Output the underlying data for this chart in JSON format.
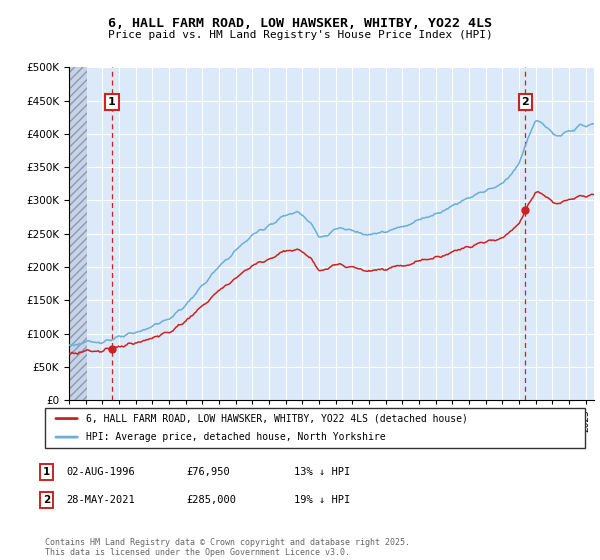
{
  "title": "6, HALL FARM ROAD, LOW HAWSKER, WHITBY, YO22 4LS",
  "subtitle": "Price paid vs. HM Land Registry's House Price Index (HPI)",
  "ylim": [
    0,
    500000
  ],
  "yticks": [
    0,
    50000,
    100000,
    150000,
    200000,
    250000,
    300000,
    350000,
    400000,
    450000,
    500000
  ],
  "xlim_start": 1994.0,
  "xlim_end": 2025.5,
  "hpi_color": "#6baed6",
  "price_color": "#cc2222",
  "sale1_x": 1996.58,
  "sale1_y": 76950,
  "sale2_x": 2021.38,
  "sale2_y": 285000,
  "legend_line1": "6, HALL FARM ROAD, LOW HAWSKER, WHITBY, YO22 4LS (detached house)",
  "legend_line2": "HPI: Average price, detached house, North Yorkshire",
  "table_row1": [
    "1",
    "02-AUG-1996",
    "£76,950",
    "13% ↓ HPI"
  ],
  "table_row2": [
    "2",
    "28-MAY-2021",
    "£285,000",
    "19% ↓ HPI"
  ],
  "footer": "Contains HM Land Registry data © Crown copyright and database right 2025.\nThis data is licensed under the Open Government Licence v3.0.",
  "plot_bg_color": "#dce9f8",
  "hatch_bg_color": "#c8d4e4",
  "grid_color": "#ffffff",
  "vline_color": "#cc2222"
}
